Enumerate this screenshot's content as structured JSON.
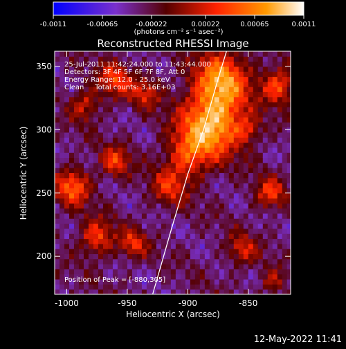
{
  "colorbar": {
    "ticks": [
      "-0.0011",
      "-0.00065",
      "-0.00022",
      "0.00022",
      "0.00065",
      "0.0011"
    ],
    "units": "(photons cm⁻² s⁻¹ asec⁻²)"
  },
  "annotations": {
    "line1": "25-Jul-2011 11:42:24.000 to 11:43:44.000",
    "line2": "Detectors: 3F 4F 5F 6F 7F 8F, Att 0",
    "line3": "Energy Range: 12.0 - 25.0 keV",
    "line4": "Clean     Total counts: 3.16E+03",
    "peak": "Position of Peak = [-880,305]"
  },
  "footer": {
    "timestamp": "12-May-2022 11:41"
  },
  "chart_data": {
    "type": "heatmap",
    "title": "Reconstructed RHESSI Image",
    "xlabel": "Heliocentric X (arcsec)",
    "ylabel": "Heliocentric Y (arcsec)",
    "xlim": [
      -1010,
      -815
    ],
    "ylim": [
      170,
      362
    ],
    "xticks": [
      -1000,
      -950,
      -900,
      -850
    ],
    "yticks": [
      200,
      250,
      300,
      350
    ],
    "xtick_labels": [
      "-1000",
      "-950",
      "-900",
      "-850"
    ],
    "ytick_labels": [
      "200",
      "250",
      "300",
      "350"
    ],
    "colorscale": [
      "#0000ff",
      "#7a30cc",
      "#550000",
      "#ff2200",
      "#ff9900",
      "#ffffff"
    ],
    "value_range": [
      -0.0011,
      0.0011
    ],
    "peak": {
      "x": -880,
      "y": 305
    },
    "limb": [
      [
        -929,
        170
      ],
      [
        -914,
        220
      ],
      [
        -900,
        265
      ],
      [
        -887,
        300
      ],
      [
        -875,
        340
      ],
      [
        -868,
        362
      ]
    ],
    "grid": false
  }
}
